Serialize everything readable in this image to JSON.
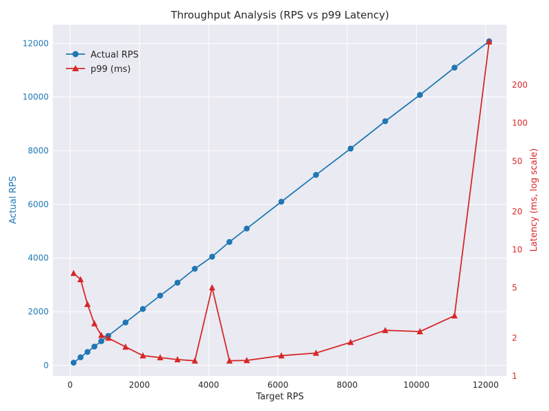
{
  "chart_data": {
    "type": "line",
    "title": "Throughput Analysis (RPS vs p99 Latency)",
    "xlabel": "Target RPS",
    "ylabel_left": "Actual RPS",
    "ylabel_right": "Latency (ms, log scale)",
    "xlim": [
      -500,
      12600
    ],
    "ylim_left": [
      -400,
      12700
    ],
    "ylim_right_log": [
      1,
      600
    ],
    "x_ticks": [
      "0",
      "2000",
      "4000",
      "6000",
      "8000",
      "10000",
      "12000"
    ],
    "y_left_ticks": [
      "0",
      "2000",
      "4000",
      "6000",
      "8000",
      "10000",
      "12000"
    ],
    "y_right_ticks": [
      "1",
      "2",
      "5",
      "10",
      "20",
      "50",
      "100",
      "200"
    ],
    "grid": true,
    "legend_placement": "top-left",
    "colors": {
      "actual": "#1f77b4",
      "p99": "#d62728",
      "background": "#eaeaf2",
      "grid": "#ffffff",
      "text": "#262626"
    },
    "series": [
      {
        "name": "Actual RPS",
        "axis": "left",
        "marker": "circle",
        "x": [
          100,
          300,
          500,
          700,
          900,
          1100,
          1600,
          2100,
          2600,
          3100,
          3600,
          4100,
          4600,
          5100,
          6100,
          7100,
          8100,
          9100,
          10100,
          11100,
          12100
        ],
        "y": [
          100,
          300,
          500,
          700,
          900,
          1100,
          1600,
          2100,
          2600,
          3080,
          3600,
          4050,
          4600,
          5100,
          6100,
          7100,
          8080,
          9100,
          10080,
          11100,
          12080
        ]
      },
      {
        "name": "p99 (ms)",
        "axis": "right",
        "marker": "triangle",
        "x": [
          100,
          300,
          500,
          700,
          900,
          1100,
          1600,
          2100,
          2600,
          3100,
          3600,
          4100,
          4600,
          5100,
          6100,
          7100,
          8100,
          9100,
          10100,
          11100,
          12100
        ],
        "y": [
          6.5,
          5.8,
          3.7,
          2.6,
          2.1,
          2.0,
          1.7,
          1.45,
          1.4,
          1.35,
          1.32,
          5.0,
          1.32,
          1.33,
          1.45,
          1.52,
          1.85,
          2.3,
          2.25,
          3.0,
          440
        ]
      }
    ]
  }
}
